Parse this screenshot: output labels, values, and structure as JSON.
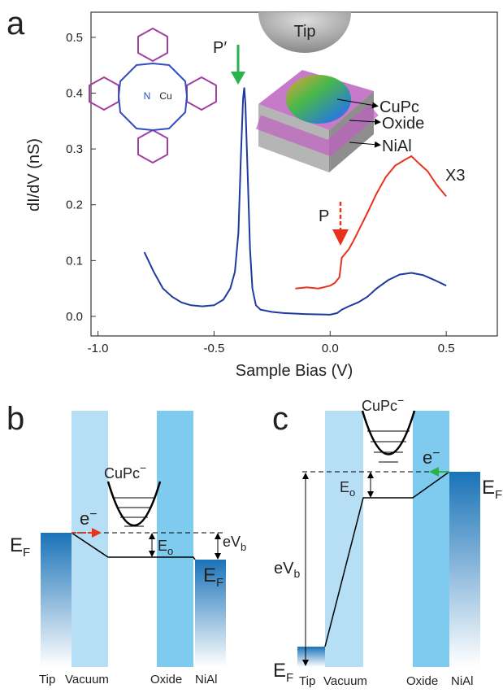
{
  "chart_data": {
    "type": "line",
    "panel_label": "a",
    "xlabel": "Sample Bias (V)",
    "ylabel": "dI/dV (nS)",
    "xlim": [
      -1.03,
      0.72
    ],
    "ylim": [
      -0.035,
      0.545
    ],
    "xticks": [
      {
        "value": -1,
        "label": "-1.0"
      },
      {
        "value": -0.5,
        "label": "-0.5"
      },
      {
        "value": 0,
        "label": "0.0"
      },
      0.5
    ],
    "yticks": [
      {
        "value": 0,
        "label": "0.0"
      },
      0.1,
      0.2,
      0.3,
      0.4,
      0.5
    ],
    "series": [
      {
        "color": "#1f3a9e",
        "x": [
          -0.8,
          -0.76,
          -0.72,
          -0.68,
          -0.64,
          -0.6,
          -0.55,
          -0.5,
          -0.46,
          -0.43,
          -0.41,
          -0.395,
          -0.385,
          -0.375,
          -0.37,
          -0.365,
          -0.355,
          -0.345,
          -0.335,
          -0.32,
          -0.3,
          -0.25,
          -0.2,
          -0.1,
          0,
          0.03,
          0.05,
          0.08,
          0.12,
          0.16,
          0.2,
          0.25,
          0.3,
          0.35,
          0.4,
          0.45,
          0.5
        ],
        "values": [
          0.115,
          0.08,
          0.05,
          0.035,
          0.025,
          0.02,
          0.018,
          0.02,
          0.03,
          0.05,
          0.08,
          0.15,
          0.28,
          0.39,
          0.41,
          0.38,
          0.25,
          0.12,
          0.05,
          0.02,
          0.012,
          0.008,
          0.006,
          0.004,
          0.003,
          0.006,
          0.012,
          0.018,
          0.025,
          0.035,
          0.05,
          0.065,
          0.075,
          0.078,
          0.074,
          0.065,
          0.055
        ]
      },
      {
        "name": "X3",
        "color": "#e8321e",
        "x": [
          -0.15,
          -0.1,
          -0.05,
          0,
          0.02,
          0.04,
          0.05,
          0.06,
          0.08,
          0.1,
          0.13,
          0.16,
          0.2,
          0.24,
          0.28,
          0.32,
          0.35,
          0.38,
          0.42,
          0.46,
          0.5
        ],
        "values": [
          0.05,
          0.052,
          0.05,
          0.055,
          0.06,
          0.07,
          0.105,
          0.11,
          0.12,
          0.135,
          0.16,
          0.185,
          0.22,
          0.25,
          0.27,
          0.28,
          0.287,
          0.275,
          0.26,
          0.235,
          0.215
        ]
      }
    ],
    "annotations": {
      "peak_p_prime": "P′",
      "peak_p": "P",
      "tip": "Tip",
      "cupc": "CuPc",
      "oxide": "Oxide",
      "nial": "NiAl",
      "cu": "Cu",
      "n": "N"
    }
  },
  "panel_b": {
    "label": "b",
    "molecule": "CuPc",
    "charge": "−",
    "electron": "e",
    "electron_charge": "−",
    "fermi": "E",
    "fermi_sub": "F",
    "eo": "E",
    "eo_sub": "o",
    "evb": "eV",
    "evb_sub": "b",
    "columns": [
      "Tip",
      "Vacuum",
      "Oxide",
      "NiAl"
    ]
  },
  "panel_c": {
    "label": "c",
    "molecule": "CuPc",
    "charge": "−",
    "electron": "e",
    "electron_charge": "−",
    "fermi": "E",
    "fermi_sub": "F",
    "eo": "E",
    "eo_sub": "o",
    "evb": "eV",
    "evb_sub": "b",
    "columns": [
      "Tip",
      "Vacuum",
      "Oxide",
      "NiAl"
    ]
  }
}
